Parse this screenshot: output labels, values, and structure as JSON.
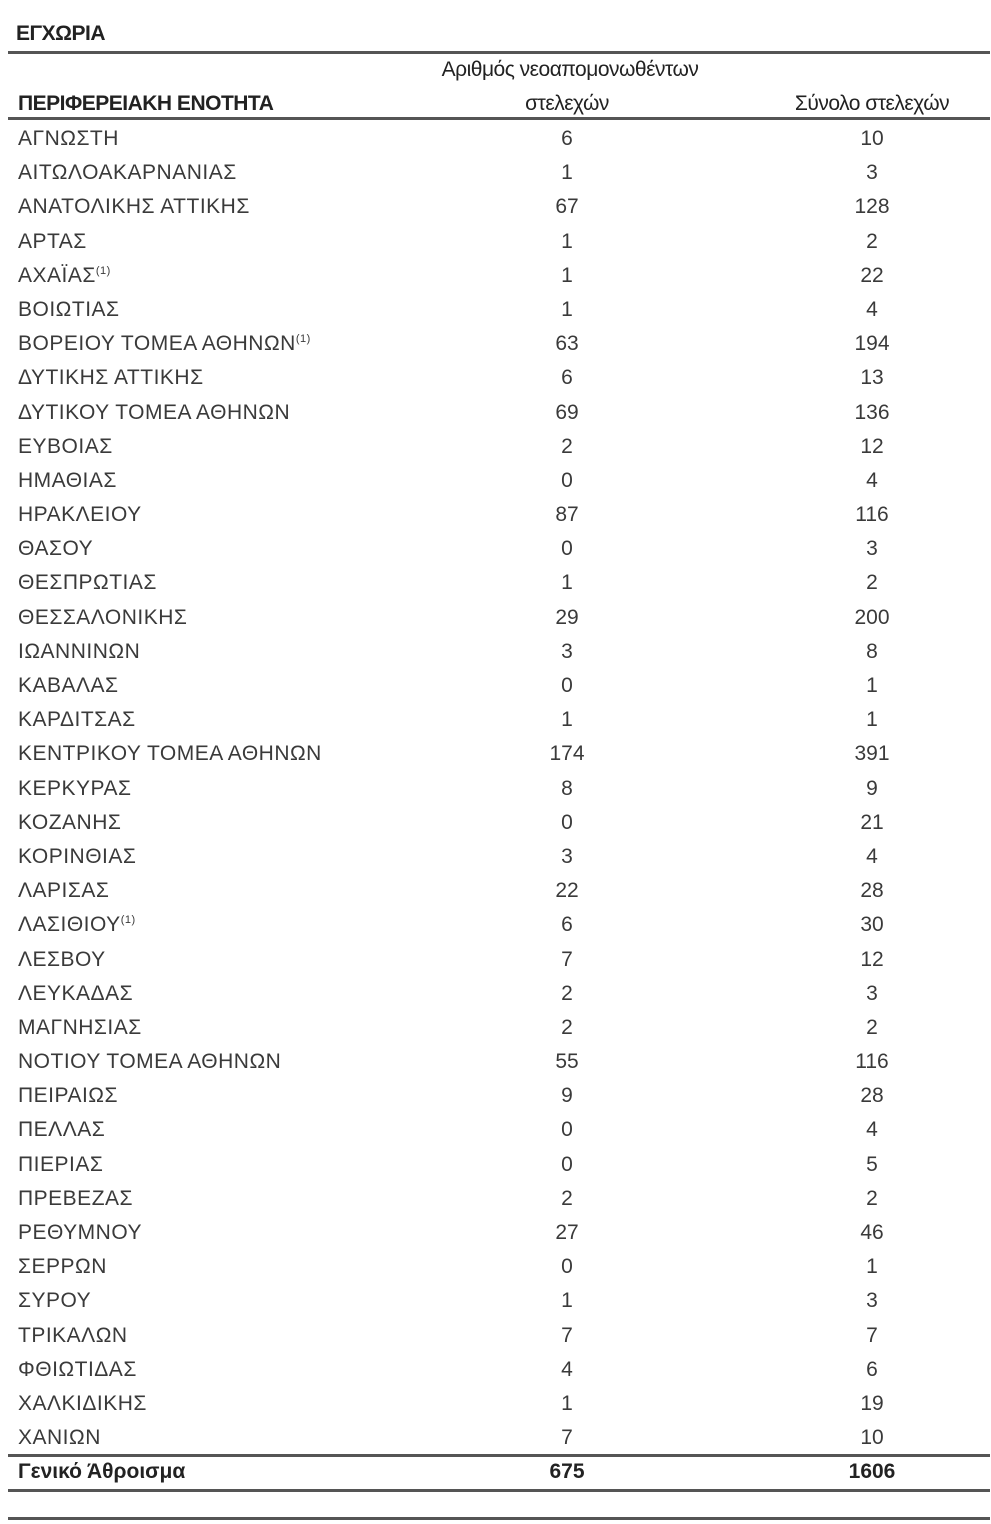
{
  "title": "ΕΓΧΩΡΙΑ",
  "headers": {
    "region": "ΠΕΡΙΦΕΡΕΙΑΚΗ ΕΝΟΤΗΤΑ",
    "isolated_line1": "Αριθμός νεοαπομονωθέντων",
    "isolated_line2": "στελεχών",
    "total": "Σύνολο στελεχών"
  },
  "rows": [
    {
      "region": "ΑΓΝΩΣΤΗ",
      "note": "",
      "isolated": "6",
      "total": "10"
    },
    {
      "region": "ΑΙΤΩΛΟΑΚΑΡΝΑΝΙΑΣ",
      "note": "",
      "isolated": "1",
      "total": "3"
    },
    {
      "region": "ΑΝΑΤΟΛΙΚΗΣ ΑΤΤΙΚΗΣ",
      "note": "",
      "isolated": "67",
      "total": "128"
    },
    {
      "region": "ΑΡΤΑΣ",
      "note": "",
      "isolated": "1",
      "total": "2"
    },
    {
      "region": "ΑΧΑΪΑΣ",
      "note": "(1)",
      "isolated": "1",
      "total": "22"
    },
    {
      "region": "ΒΟΙΩΤΙΑΣ",
      "note": "",
      "isolated": "1",
      "total": "4"
    },
    {
      "region": "ΒΟΡΕΙΟΥ ΤΟΜΕΑ ΑΘΗΝΩΝ",
      "note": "(1)",
      "isolated": "63",
      "total": "194"
    },
    {
      "region": "ΔΥΤΙΚΗΣ ΑΤΤΙΚΗΣ",
      "note": "",
      "isolated": "6",
      "total": "13"
    },
    {
      "region": "ΔΥΤΙΚΟΥ ΤΟΜΕΑ ΑΘΗΝΩΝ",
      "note": "",
      "isolated": "69",
      "total": "136"
    },
    {
      "region": "ΕΥΒΟΙΑΣ",
      "note": "",
      "isolated": "2",
      "total": "12"
    },
    {
      "region": "ΗΜΑΘΙΑΣ",
      "note": "",
      "isolated": "0",
      "total": "4"
    },
    {
      "region": "ΗΡΑΚΛΕΙΟΥ",
      "note": "",
      "isolated": "87",
      "total": "116"
    },
    {
      "region": "ΘΑΣΟΥ",
      "note": "",
      "isolated": "0",
      "total": "3"
    },
    {
      "region": "ΘΕΣΠΡΩΤΙΑΣ",
      "note": "",
      "isolated": "1",
      "total": "2"
    },
    {
      "region": "ΘΕΣΣΑΛΟΝΙΚΗΣ",
      "note": "",
      "isolated": "29",
      "total": "200"
    },
    {
      "region": "ΙΩΑΝΝΙΝΩΝ",
      "note": "",
      "isolated": "3",
      "total": "8"
    },
    {
      "region": "ΚΑΒΑΛΑΣ",
      "note": "",
      "isolated": "0",
      "total": "1"
    },
    {
      "region": "ΚΑΡΔΙΤΣΑΣ",
      "note": "",
      "isolated": "1",
      "total": "1"
    },
    {
      "region": "ΚΕΝΤΡΙΚΟΥ ΤΟΜΕΑ ΑΘΗΝΩΝ",
      "note": "",
      "isolated": "174",
      "total": "391"
    },
    {
      "region": "ΚΕΡΚΥΡΑΣ",
      "note": "",
      "isolated": "8",
      "total": "9"
    },
    {
      "region": "ΚΟΖΑΝΗΣ",
      "note": "",
      "isolated": "0",
      "total": "21"
    },
    {
      "region": "ΚΟΡΙΝΘΙΑΣ",
      "note": "",
      "isolated": "3",
      "total": "4"
    },
    {
      "region": "ΛΑΡΙΣΑΣ",
      "note": "",
      "isolated": "22",
      "total": "28"
    },
    {
      "region": "ΛΑΣΙΘΙΟΥ",
      "note": "(1)",
      "isolated": "6",
      "total": "30"
    },
    {
      "region": "ΛΕΣΒΟΥ",
      "note": "",
      "isolated": "7",
      "total": "12"
    },
    {
      "region": "ΛΕΥΚΑΔΑΣ",
      "note": "",
      "isolated": "2",
      "total": "3"
    },
    {
      "region": "ΜΑΓΝΗΣΙΑΣ",
      "note": "",
      "isolated": "2",
      "total": "2"
    },
    {
      "region": "ΝΟΤΙΟΥ ΤΟΜΕΑ ΑΘΗΝΩΝ",
      "note": "",
      "isolated": "55",
      "total": "116"
    },
    {
      "region": "ΠΕΙΡΑΙΩΣ",
      "note": "",
      "isolated": "9",
      "total": "28"
    },
    {
      "region": "ΠΕΛΛΑΣ",
      "note": "",
      "isolated": "0",
      "total": "4"
    },
    {
      "region": "ΠΙΕΡΙΑΣ",
      "note": "",
      "isolated": "0",
      "total": "5"
    },
    {
      "region": "ΠΡΕΒΕΖΑΣ",
      "note": "",
      "isolated": "2",
      "total": "2"
    },
    {
      "region": "ΡΕΘΥΜΝΟΥ",
      "note": "",
      "isolated": "27",
      "total": "46"
    },
    {
      "region": "ΣΕΡΡΩΝ",
      "note": "",
      "isolated": "0",
      "total": "1"
    },
    {
      "region": "ΣΥΡΟΥ",
      "note": "",
      "isolated": "1",
      "total": "3"
    },
    {
      "region": "ΤΡΙΚΑΛΩΝ",
      "note": "",
      "isolated": "7",
      "total": "7"
    },
    {
      "region": "ΦΘΙΩΤΙΔΑΣ",
      "note": "",
      "isolated": "4",
      "total": "6"
    },
    {
      "region": "ΧΑΛΚΙΔΙΚΗΣ",
      "note": "",
      "isolated": "1",
      "total": "19"
    },
    {
      "region": "ΧΑΝΙΩΝ",
      "note": "",
      "isolated": "7",
      "total": "10"
    }
  ],
  "grand_total": {
    "label": "Γενικό Άθροισμα",
    "isolated": "675",
    "total": "1606"
  }
}
